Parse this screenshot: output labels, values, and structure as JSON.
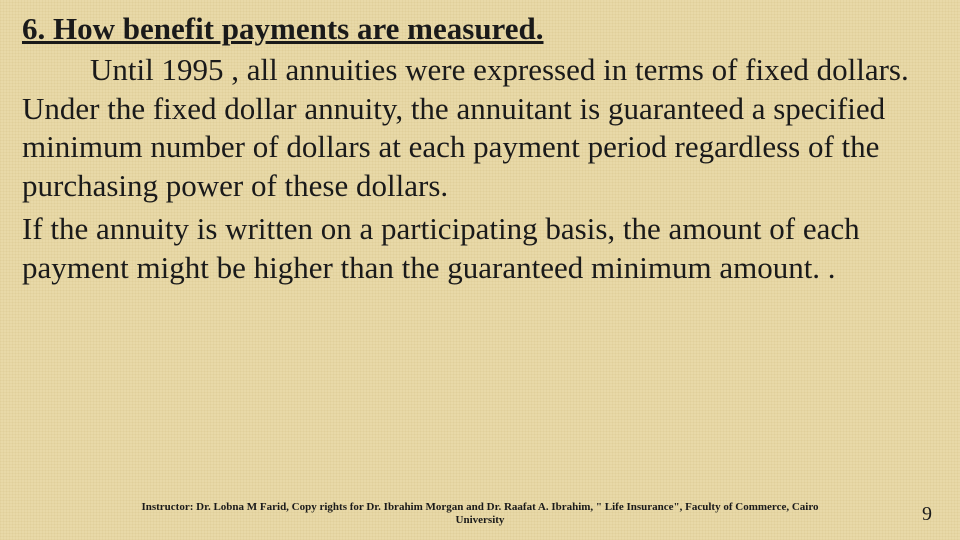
{
  "slide": {
    "heading": "6. How benefit payments are measured.",
    "paragraph1": "Until 1995 , all annuities were expressed in terms of fixed dollars. Under the fixed dollar annuity, the annuitant is guaranteed a specified minimum number of dollars at each payment period regardless of the purchasing power of these dollars.",
    "paragraph2": "If the annuity is written on a participating basis, the amount of each payment might be higher than the guaranteed minimum amount. .",
    "footer": "Instructor: Dr. Lobna M Farid, Copy rights for Dr. Ibrahim Morgan and Dr. Raafat A. Ibrahim, \" Life Insurance\", Faculty of Commerce, Cairo University",
    "page_number": "9"
  },
  "style": {
    "background_color": "#e8d9a8",
    "text_color": "#1a1a1a",
    "heading_fontsize": 31,
    "body_fontsize": 31,
    "footer_fontsize": 11,
    "pagenum_fontsize": 20,
    "font_family": "Times New Roman"
  }
}
